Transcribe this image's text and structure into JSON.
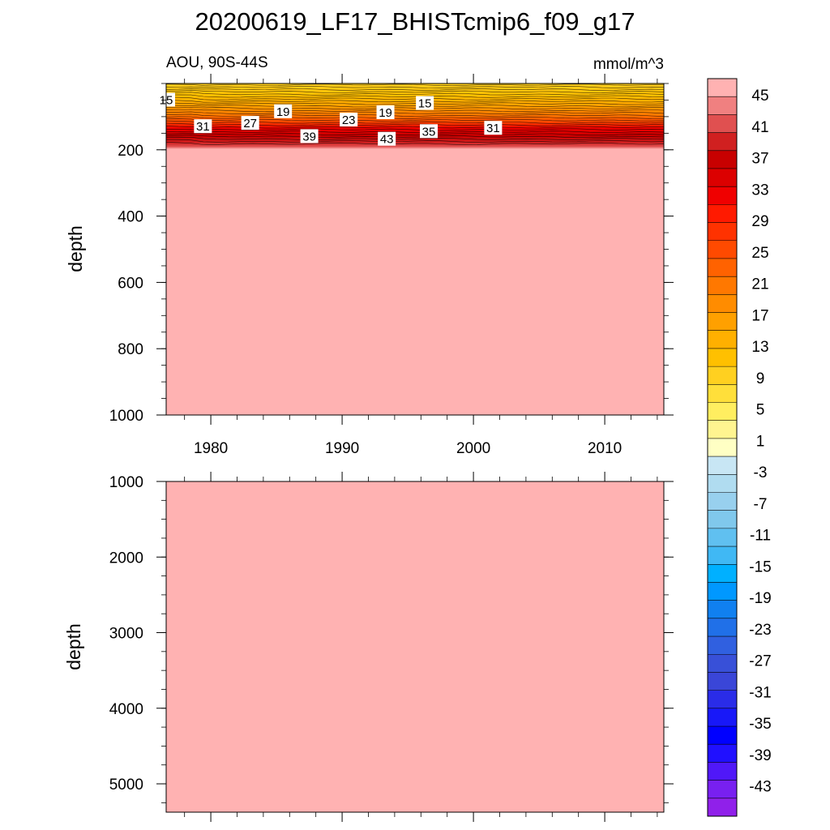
{
  "chart_data": {
    "type": "heatmap",
    "title": "20200619_LF17_BHISTcmip6_f09_g17",
    "subtitle_left": "AOU, 90S-44S",
    "subtitle_right": "mmol/m^3",
    "xlim": [
      1976.6,
      2014.5
    ],
    "x_ticks": [
      1980,
      1990,
      2000,
      2010
    ],
    "x_tick_labels": [
      "1980",
      "1990",
      "2000",
      "2010"
    ],
    "panels": [
      {
        "ylabel": "depth",
        "ylim": [
          0,
          1000
        ],
        "y_reversed": true,
        "y_ticks": [
          200,
          400,
          600,
          800,
          1000
        ],
        "y_tick_labels": [
          "200",
          "400",
          "600",
          "800",
          "1000"
        ],
        "contour_labels": [
          {
            "text": "15",
            "year": 1976.6,
            "depth": 50
          },
          {
            "text": "19",
            "year": 1985.5,
            "depth": 85
          },
          {
            "text": "23",
            "year": 1990.5,
            "depth": 110
          },
          {
            "text": "19",
            "year": 1993.3,
            "depth": 88
          },
          {
            "text": "15",
            "year": 1996.3,
            "depth": 60
          },
          {
            "text": "31",
            "year": 1979.4,
            "depth": 130
          },
          {
            "text": "27",
            "year": 1983.0,
            "depth": 120
          },
          {
            "text": "39",
            "year": 1987.5,
            "depth": 160
          },
          {
            "text": "43",
            "year": 1993.4,
            "depth": 168
          },
          {
            "text": "35",
            "year": 1996.6,
            "depth": 145
          },
          {
            "text": "31",
            "year": 2001.5,
            "depth": 135
          }
        ]
      },
      {
        "ylabel": "depth",
        "ylim": [
          1000,
          5375
        ],
        "y_reversed": true,
        "y_ticks": [
          1000,
          2000,
          3000,
          4000,
          5000
        ],
        "y_tick_labels": [
          "1000",
          "2000",
          "3000",
          "4000",
          "5000"
        ],
        "fill_color": "#ffb2b2"
      }
    ],
    "colorbar": {
      "labels": [
        "45",
        "41",
        "37",
        "33",
        "29",
        "25",
        "21",
        "17",
        "13",
        "9",
        "5",
        "1",
        "-3",
        "-7",
        "-11",
        "-15",
        "-19",
        "-23",
        "-27",
        "-31",
        "-35",
        "-39",
        "-43"
      ],
      "colors": [
        "#ffb2b2",
        "#f08080",
        "#e05050",
        "#d02020",
        "#c80000",
        "#dc0000",
        "#f00000",
        "#ff1a00",
        "#ff3200",
        "#ff4a00",
        "#ff6200",
        "#ff7800",
        "#ff8c00",
        "#ffa000",
        "#ffb000",
        "#ffc000",
        "#ffd020",
        "#ffdf3a",
        "#ffee60",
        "#fff490",
        "#ffffc4",
        "#c8e6f4",
        "#b0dcf0",
        "#98d0ee",
        "#80c8ec",
        "#60c0f0",
        "#40b8f4",
        "#00b0ff",
        "#0098ff",
        "#1080f0",
        "#2070e8",
        "#3060e0",
        "#3850d8",
        "#3a46d8",
        "#2a2ce8",
        "#1818f8",
        "#0000ff",
        "#2010ff",
        "#5018f8",
        "#7820f0",
        "#9020ea"
      ]
    }
  }
}
